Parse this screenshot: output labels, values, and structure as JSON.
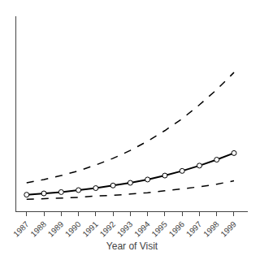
{
  "chart_data": {
    "type": "line",
    "xlabel": "Year of Visit",
    "x": [
      1987,
      1988,
      1989,
      1990,
      1991,
      1992,
      1993,
      1994,
      1995,
      1996,
      1997,
      1998,
      1999
    ],
    "series": [
      {
        "color": "#000000",
        "line_style": "dashed",
        "values": [
          0.28,
          0.33,
          0.39,
          0.46,
          0.55,
          0.65,
          0.77,
          0.91,
          1.07,
          1.25,
          1.46,
          1.69,
          1.95
        ]
      },
      {
        "color": "#000000",
        "line_style": "solid",
        "marker": "circle",
        "values": [
          0.1,
          0.12,
          0.14,
          0.17,
          0.2,
          0.24,
          0.28,
          0.33,
          0.39,
          0.46,
          0.54,
          0.63,
          0.73
        ]
      },
      {
        "color": "#000000",
        "line_style": "dashed",
        "values": [
          0.03,
          0.04,
          0.05,
          0.06,
          0.08,
          0.09,
          0.11,
          0.13,
          0.16,
          0.19,
          0.22,
          0.26,
          0.31
        ]
      }
    ],
    "xlim": [
      1986.4,
      1999.8
    ],
    "xticks": [
      1987,
      1988,
      1989,
      1990,
      1991,
      1992,
      1993,
      1994,
      1995,
      1996,
      1997,
      1998,
      1999
    ],
    "ylim": [
      -0.15,
      2.8
    ],
    "grid": false,
    "tick_labels": "x"
  }
}
